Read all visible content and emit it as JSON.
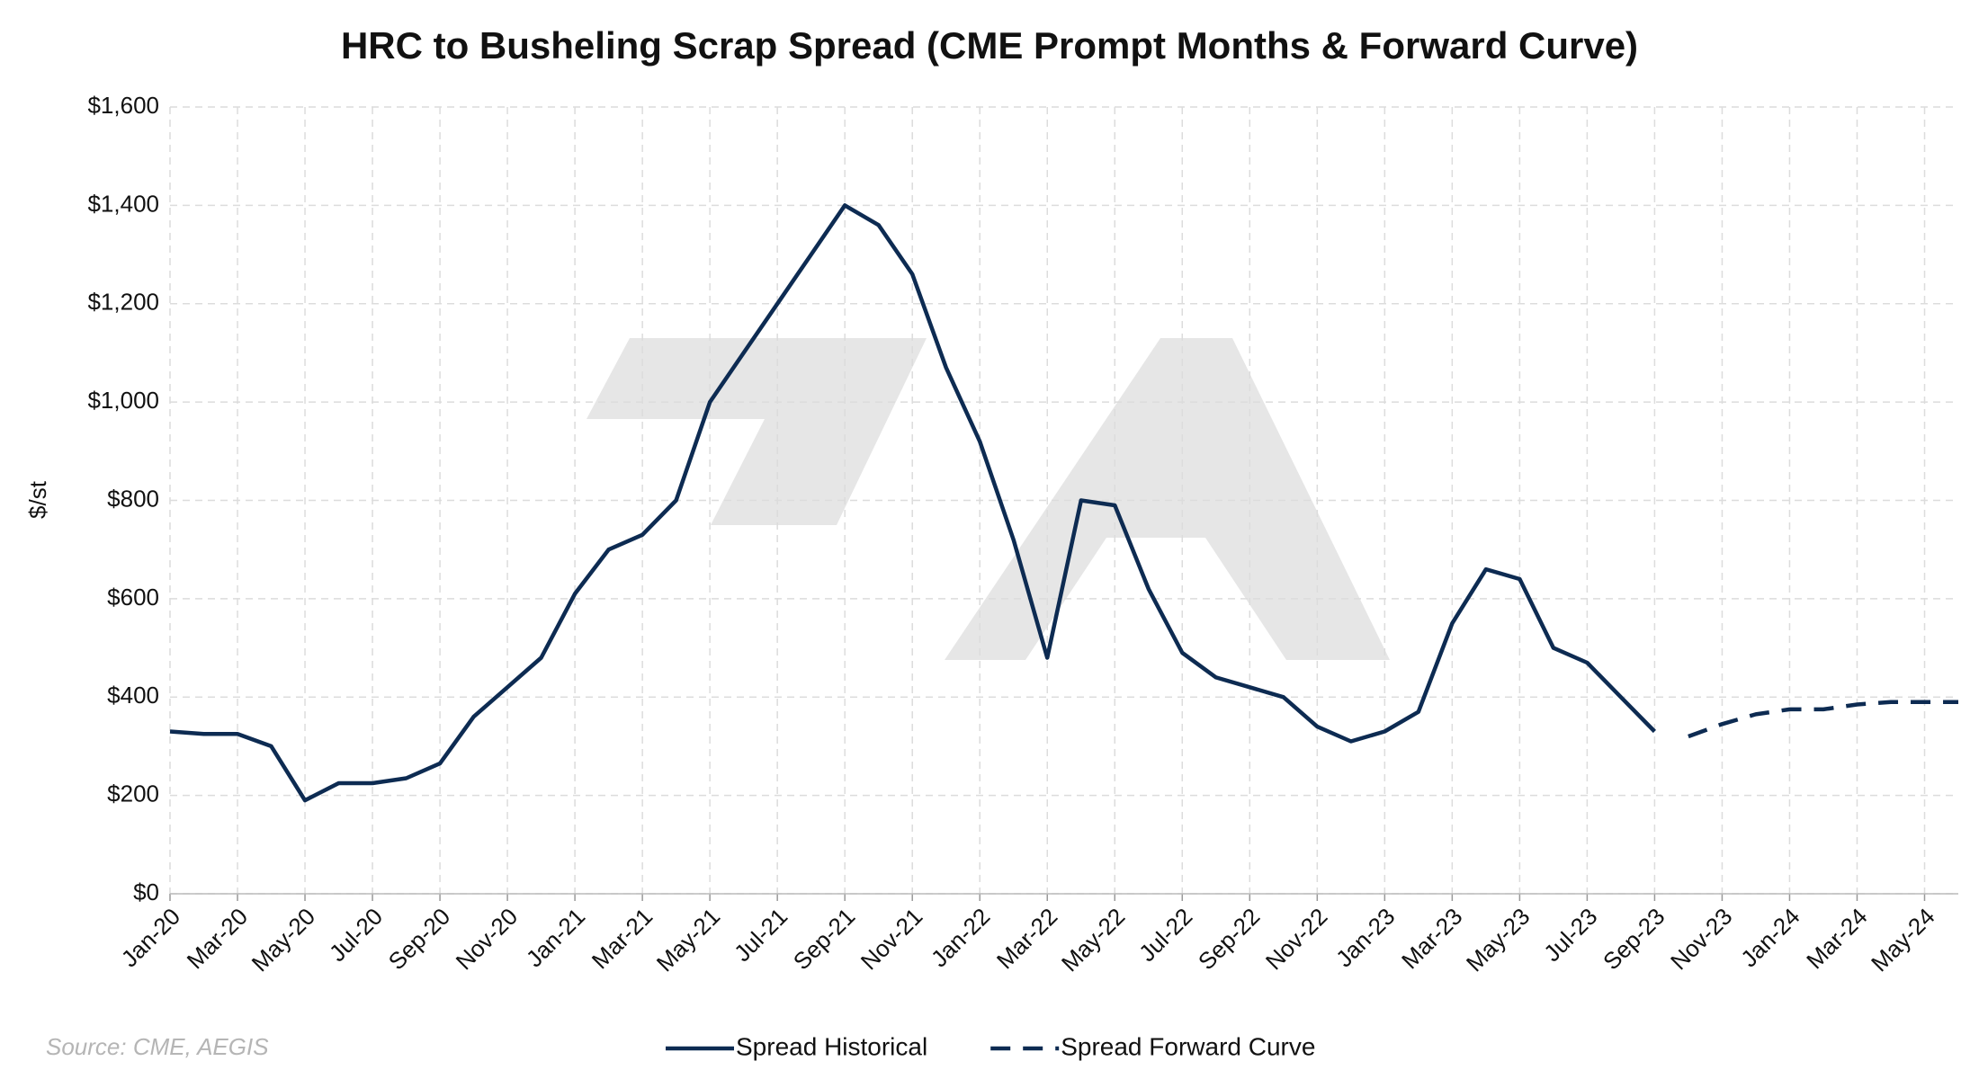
{
  "chart_data": {
    "type": "line",
    "title": "HRC to Busheling Scrap Spread (CME Prompt Months & Forward Curve)",
    "y_label": "$/st",
    "source": "Source: CME, AEGIS",
    "x": [
      "2020-01",
      "2020-02",
      "2020-03",
      "2020-04",
      "2020-05",
      "2020-06",
      "2020-07",
      "2020-08",
      "2020-09",
      "2020-10",
      "2020-11",
      "2020-12",
      "2021-01",
      "2021-02",
      "2021-03",
      "2021-04",
      "2021-05",
      "2021-06",
      "2021-07",
      "2021-08",
      "2021-09",
      "2021-10",
      "2021-11",
      "2021-12",
      "2022-01",
      "2022-02",
      "2022-03",
      "2022-04",
      "2022-05",
      "2022-06",
      "2022-07",
      "2022-08",
      "2022-09",
      "2022-10",
      "2022-11",
      "2022-12",
      "2023-01",
      "2023-02",
      "2023-03",
      "2023-04",
      "2023-05",
      "2023-06",
      "2023-07",
      "2023-08",
      "2023-09",
      "2023-10",
      "2023-11",
      "2023-12",
      "2024-01",
      "2024-02",
      "2024-03",
      "2024-04",
      "2024-05",
      "2024-06"
    ],
    "series": [
      {
        "name": "Spread Historical",
        "color": "#0d2b52",
        "style": "solid",
        "values": [
          330,
          325,
          325,
          300,
          190,
          225,
          225,
          235,
          265,
          360,
          420,
          480,
          610,
          700,
          730,
          800,
          1000,
          1100,
          1200,
          1300,
          1400,
          1360,
          1260,
          1070,
          920,
          720,
          480,
          800,
          790,
          620,
          490,
          440,
          420,
          400,
          340,
          310,
          330,
          370,
          550,
          660,
          640,
          500,
          470,
          400,
          330,
          null,
          null,
          null,
          null,
          null,
          null,
          null,
          null,
          null
        ]
      },
      {
        "name": "Spread Forward Curve",
        "color": "#0d2b52",
        "style": "dashed",
        "values": [
          null,
          null,
          null,
          null,
          null,
          null,
          null,
          null,
          null,
          null,
          null,
          null,
          null,
          null,
          null,
          null,
          null,
          null,
          null,
          null,
          null,
          null,
          null,
          null,
          null,
          null,
          null,
          null,
          null,
          null,
          null,
          null,
          null,
          null,
          null,
          null,
          null,
          null,
          null,
          null,
          null,
          null,
          null,
          null,
          null,
          320,
          345,
          365,
          375,
          375,
          385,
          390,
          390,
          390
        ]
      }
    ],
    "xlim": [
      "2020-01",
      "2024-06"
    ],
    "xticks": [
      {
        "value": "2020-01",
        "label": "Jan-20"
      },
      {
        "value": "2020-03",
        "label": "Mar-20"
      },
      {
        "value": "2020-05",
        "label": "May-20"
      },
      {
        "value": "2020-07",
        "label": "Jul-20"
      },
      {
        "value": "2020-09",
        "label": "Sep-20"
      },
      {
        "value": "2020-11",
        "label": "Nov-20"
      },
      {
        "value": "2021-01",
        "label": "Jan-21"
      },
      {
        "value": "2021-03",
        "label": "Mar-21"
      },
      {
        "value": "2021-05",
        "label": "May-21"
      },
      {
        "value": "2021-07",
        "label": "Jul-21"
      },
      {
        "value": "2021-09",
        "label": "Sep-21"
      },
      {
        "value": "2021-11",
        "label": "Nov-21"
      },
      {
        "value": "2022-01",
        "label": "Jan-22"
      },
      {
        "value": "2022-03",
        "label": "Mar-22"
      },
      {
        "value": "2022-05",
        "label": "May-22"
      },
      {
        "value": "2022-07",
        "label": "Jul-22"
      },
      {
        "value": "2022-09",
        "label": "Sep-22"
      },
      {
        "value": "2022-11",
        "label": "Nov-22"
      },
      {
        "value": "2023-01",
        "label": "Jan-23"
      },
      {
        "value": "2023-03",
        "label": "Mar-23"
      },
      {
        "value": "2023-05",
        "label": "May-23"
      },
      {
        "value": "2023-07",
        "label": "Jul-23"
      },
      {
        "value": "2023-09",
        "label": "Sep-23"
      },
      {
        "value": "2023-11",
        "label": "Nov-23"
      },
      {
        "value": "2024-01",
        "label": "Jan-24"
      },
      {
        "value": "2024-03",
        "label": "Mar-24"
      },
      {
        "value": "2024-05",
        "label": "May-24"
      }
    ],
    "ylim": [
      0,
      1600
    ],
    "yticks": [
      {
        "value": 0,
        "label": "$0"
      },
      {
        "value": 200,
        "label": "$200"
      },
      {
        "value": 400,
        "label": "$400"
      },
      {
        "value": 600,
        "label": "$600"
      },
      {
        "value": 800,
        "label": "$800"
      },
      {
        "value": 1000,
        "label": "$1,000"
      },
      {
        "value": 1200,
        "label": "$1,200"
      },
      {
        "value": 1400,
        "label": "$1,400"
      },
      {
        "value": 1600,
        "label": "$1,600"
      }
    ],
    "grid": true,
    "legend": "bottom"
  }
}
